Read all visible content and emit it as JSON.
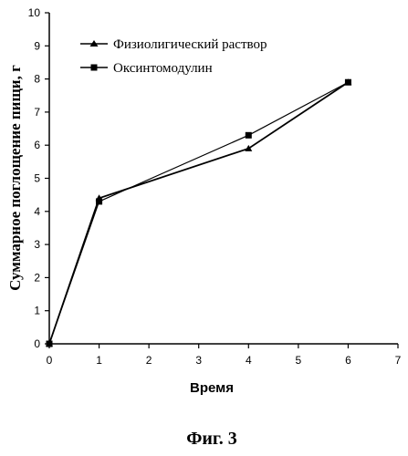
{
  "chart_data": {
    "type": "line",
    "xlabel": "Время",
    "ylabel": "Суммарное поглощение пищи, г",
    "xlim": [
      0,
      7
    ],
    "ylim": [
      0,
      10
    ],
    "x_ticks": [
      "0",
      "1",
      "2",
      "3",
      "4",
      "5",
      "6",
      "7"
    ],
    "y_ticks": [
      "0",
      "1",
      "2",
      "3",
      "4",
      "5",
      "6",
      "7",
      "8",
      "9",
      "10"
    ],
    "grid": false,
    "legend_position": "top-left",
    "series": [
      {
        "name": "Физиолигический раствор",
        "marker": "triangle",
        "x": [
          0,
          1,
          4,
          6
        ],
        "y": [
          0,
          4.4,
          5.9,
          7.9
        ]
      },
      {
        "name": "Оксинтомодулин",
        "marker": "square",
        "x": [
          0,
          1,
          4,
          6
        ],
        "y": [
          0,
          4.3,
          6.3,
          7.9
        ]
      }
    ]
  },
  "caption": "Фиг. 3"
}
